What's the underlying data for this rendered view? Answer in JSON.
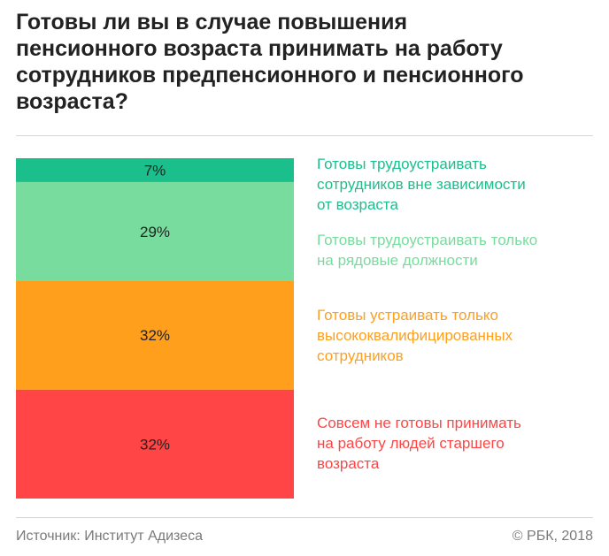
{
  "title": "Готовы ли вы в случае повышения\nпенсионного возраста  принимать на работу\nсотрудников предпенсионного и пенсионного\nвозраста?",
  "chart_data": {
    "type": "bar",
    "stacked": true,
    "orientation": "vertical",
    "unit": "%",
    "segments": [
      {
        "name": "Готовы трудоустраивать\nсотрудников вне зависимости\nот возраста",
        "value": 7,
        "label": "7%",
        "color": "#1bbf8c"
      },
      {
        "name": "Готовы трудоустраивать только\nна рядовые должности",
        "value": 29,
        "label": "29%",
        "color": "#77dc9d"
      },
      {
        "name": "Готовы устраивать только\nвысококвалифицированных\nсотрудников",
        "value": 32,
        "label": "32%",
        "color": "#ff9f1c"
      },
      {
        "name": "Совсем не готовы принимать\nна работу людей старшего\nвозраста",
        "value": 32,
        "label": "32%",
        "color": "#ff4545"
      }
    ]
  },
  "footer": {
    "source": "Источник: Институт Адизеса",
    "copyright": "© РБК, 2018"
  }
}
